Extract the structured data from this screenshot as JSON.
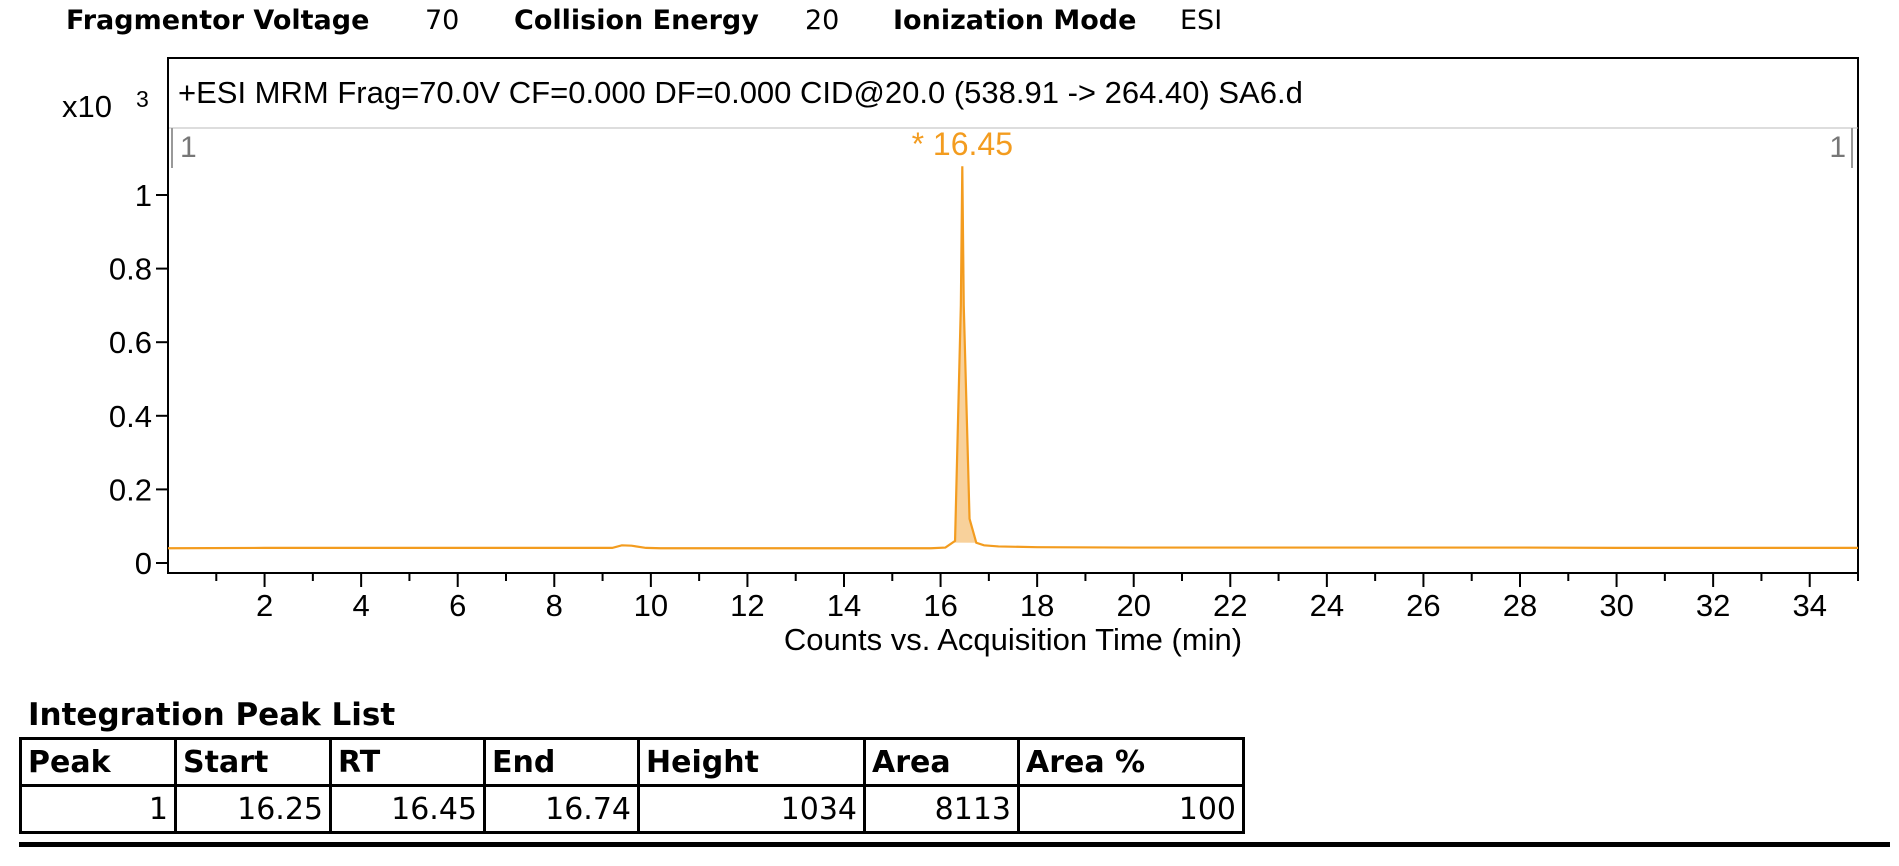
{
  "header": {
    "fragmentor_label": "Fragmentor Voltage",
    "fragmentor_value": "70",
    "collision_label": "Collision Energy",
    "collision_value": "20",
    "ionization_label": "Ionization Mode",
    "ionization_value": "ESI"
  },
  "chart_data": {
    "type": "line",
    "title": "+ESI MRM Frag=70.0V CF=0.000 DF=0.000 CID@20.0 (538.91 -> 264.40) SA6.d",
    "xlabel": "Counts vs. Acquisition Time (min)",
    "y_multiplier": "x10",
    "y_exponent": "3",
    "xlim": [
      0,
      35
    ],
    "ylim": [
      -0.02,
      1.15
    ],
    "x_ticks": [
      2,
      4,
      6,
      8,
      10,
      12,
      14,
      16,
      18,
      20,
      22,
      24,
      26,
      28,
      30,
      32,
      34
    ],
    "y_ticks": [
      0,
      0.2,
      0.4,
      0.6,
      0.8,
      1
    ],
    "y_tick_labels": [
      "0",
      "0.2",
      "0.4",
      "0.6",
      "0.8",
      "1"
    ],
    "marker_left": "1",
    "marker_right": "1",
    "series": [
      {
        "color": "#F39C1F",
        "fill": "#F7C98A",
        "x": [
          0,
          2,
          4,
          6,
          8,
          9.2,
          9.4,
          9.6,
          9.9,
          10.2,
          12,
          14,
          15.8,
          16.1,
          16.3,
          16.42,
          16.45,
          16.48,
          16.6,
          16.74,
          16.9,
          17.2,
          18,
          20,
          22,
          24,
          26,
          28,
          30,
          32,
          34,
          35
        ],
        "y": [
          0.04,
          0.041,
          0.041,
          0.041,
          0.041,
          0.041,
          0.048,
          0.047,
          0.041,
          0.04,
          0.04,
          0.04,
          0.04,
          0.042,
          0.06,
          0.7,
          1.078,
          0.7,
          0.12,
          0.055,
          0.048,
          0.045,
          0.043,
          0.042,
          0.042,
          0.042,
          0.042,
          0.042,
          0.041,
          0.041,
          0.041,
          0.041
        ]
      }
    ],
    "integration": {
      "start": 16.25,
      "end": 16.74
    },
    "annotations": [
      {
        "x": 16.45,
        "y": 1.078,
        "text": "* 16.45"
      }
    ]
  },
  "peak_list": {
    "title": "Integration Peak List",
    "columns": [
      "Peak",
      "Start",
      "RT",
      "End",
      "Height",
      "Area",
      "Area %"
    ],
    "rows": [
      [
        "1",
        "16.25",
        "16.45",
        "16.74",
        "1034",
        "8113",
        "100"
      ]
    ]
  }
}
